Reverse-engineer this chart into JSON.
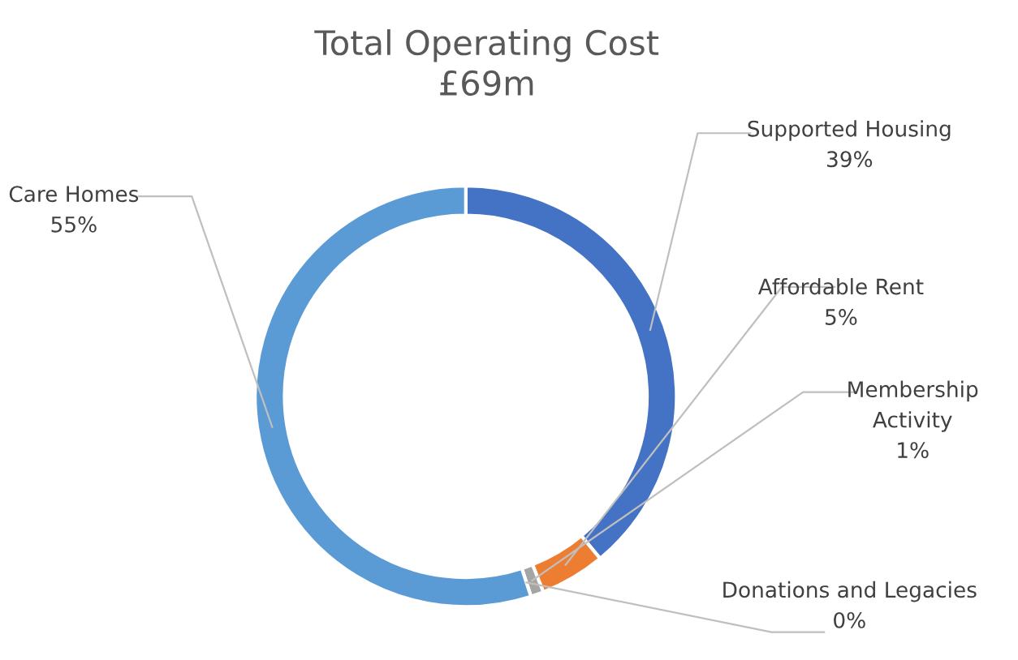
{
  "chart_data": {
    "type": "donut",
    "title": "Total Operating Cost\n£69m",
    "categories": [
      "Supported Housing",
      "Affordable Rent",
      "Membership Activity",
      "Donations and Legacies",
      "Care Homes"
    ],
    "values": [
      39,
      5,
      1,
      0,
      55
    ],
    "colors": [
      "#4472c4",
      "#ed7d31",
      "#a5a5a5",
      "#ffc000",
      "#5b9bd5"
    ],
    "value_labels": [
      "39%",
      "5%",
      "1%",
      "0%",
      "55%"
    ]
  }
}
